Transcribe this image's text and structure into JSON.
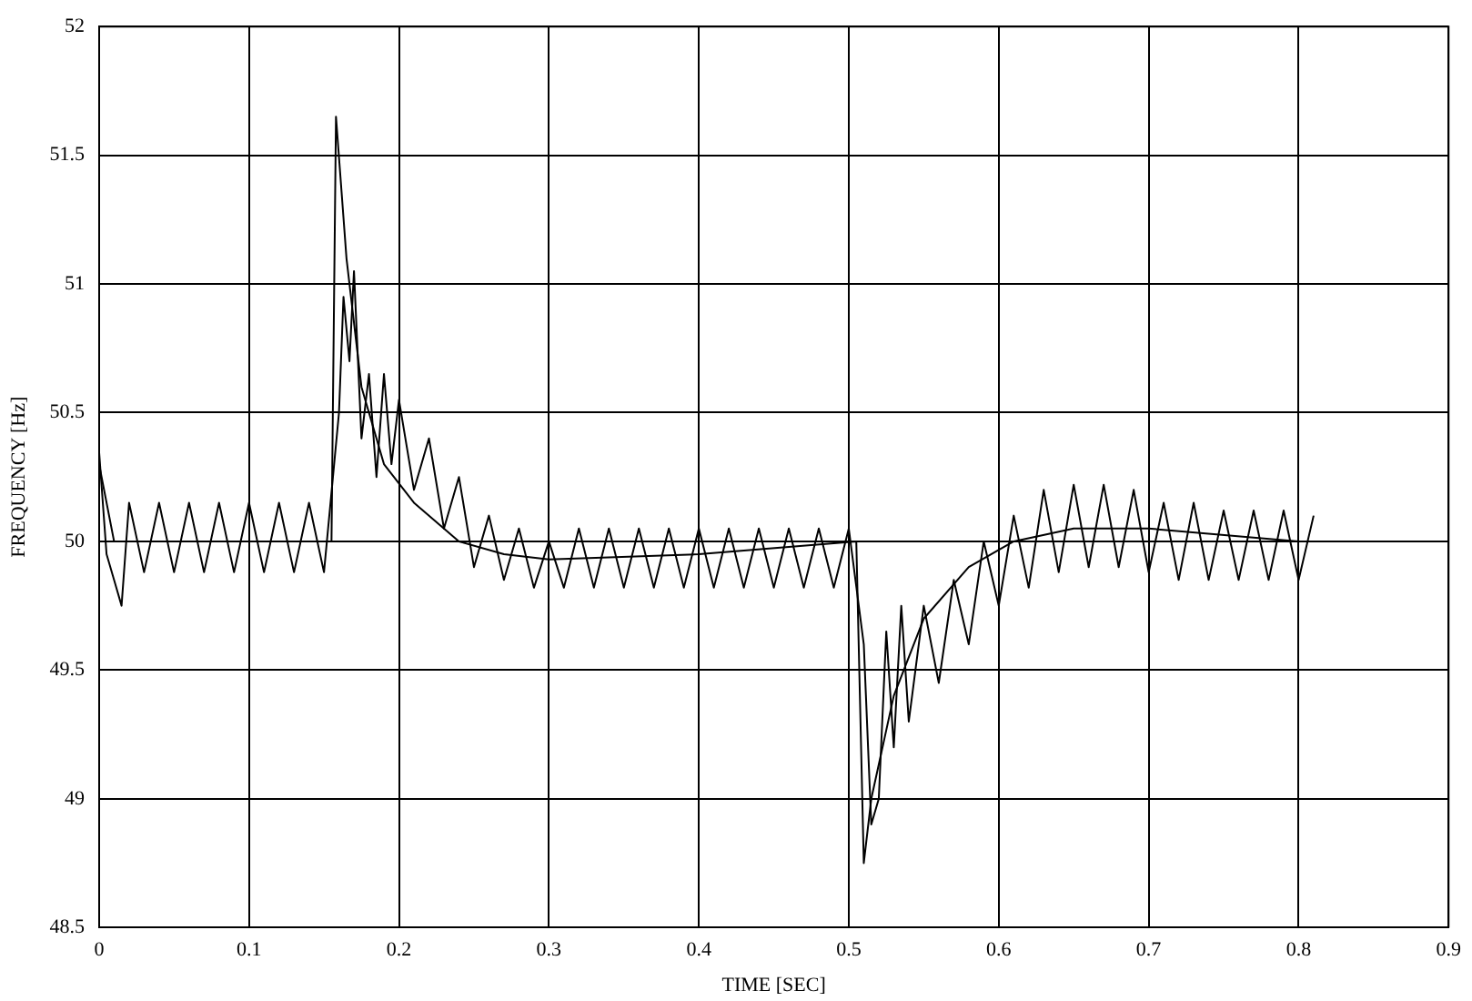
{
  "chart_data": {
    "type": "line",
    "xlabel": "TIME [SEC]",
    "ylabel": "FREQUENCY [Hz]",
    "xlim": [
      0,
      0.9
    ],
    "xticks": [
      0,
      0.1,
      0.2,
      0.3,
      0.4,
      0.5,
      0.6,
      0.7,
      0.8,
      0.9
    ],
    "ylim": [
      48.5,
      52
    ],
    "yticks": [
      48.5,
      49,
      49.5,
      50,
      50.5,
      51,
      51.5,
      52
    ],
    "grid": true,
    "legend": false,
    "marker": "none",
    "line_style": "solid",
    "series": [
      {
        "color": "#000000",
        "x": [
          0,
          0.005,
          0.01,
          0.015,
          0.02,
          0.03,
          0.04,
          0.05,
          0.06,
          0.07,
          0.08,
          0.09,
          0.1,
          0.11,
          0.12,
          0.13,
          0.14,
          0.15,
          0.16,
          0.163,
          0.167,
          0.17,
          0.175,
          0.18,
          0.185,
          0.19,
          0.195,
          0.2,
          0.21,
          0.22,
          0.23,
          0.24,
          0.25,
          0.26,
          0.27,
          0.28,
          0.29,
          0.3,
          0.31,
          0.32,
          0.33,
          0.34,
          0.35,
          0.36,
          0.37,
          0.38,
          0.39,
          0.4,
          0.41,
          0.42,
          0.43,
          0.44,
          0.45,
          0.46,
          0.47,
          0.48,
          0.49,
          0.5,
          0.51,
          0.515,
          0.52,
          0.525,
          0.53,
          0.535,
          0.54,
          0.55,
          0.56,
          0.57,
          0.58,
          0.59,
          0.6,
          0.61,
          0.62,
          0.63,
          0.64,
          0.65,
          0.66,
          0.67,
          0.68,
          0.69,
          0.7,
          0.71,
          0.72,
          0.73,
          0.74,
          0.75,
          0.76,
          0.77,
          0.78,
          0.79,
          0.8,
          0.81
        ],
        "values": [
          50.35,
          49.95,
          49.85,
          49.75,
          50.15,
          49.88,
          50.15,
          49.88,
          50.15,
          49.88,
          50.15,
          49.88,
          50.15,
          49.88,
          50.15,
          49.88,
          50.15,
          49.88,
          50.5,
          50.95,
          50.7,
          51.05,
          50.4,
          50.65,
          50.25,
          50.65,
          50.3,
          50.55,
          50.2,
          50.4,
          50.05,
          50.25,
          49.9,
          50.1,
          49.85,
          50.05,
          49.82,
          50,
          49.82,
          50.05,
          49.82,
          50.05,
          49.82,
          50.05,
          49.82,
          50.05,
          49.82,
          50.05,
          49.82,
          50.05,
          49.82,
          50.05,
          49.82,
          50.05,
          49.82,
          50.05,
          49.82,
          50.05,
          49.6,
          48.9,
          49,
          49.65,
          49.2,
          49.75,
          49.3,
          49.75,
          49.45,
          49.85,
          49.6,
          50,
          49.75,
          50.1,
          49.82,
          50.2,
          49.88,
          50.22,
          49.9,
          50.22,
          49.9,
          50.2,
          49.88,
          50.15,
          49.85,
          50.15,
          49.85,
          50.12,
          49.85,
          50.12,
          49.85,
          50.12,
          49.85,
          50.1
        ]
      },
      {
        "color": "#000000",
        "x": [
          0,
          0.01,
          0.02,
          0.155,
          0.158,
          0.165,
          0.175,
          0.19,
          0.21,
          0.24,
          0.27,
          0.3,
          0.4,
          0.505,
          0.51,
          0.515,
          0.53,
          0.55,
          0.58,
          0.61,
          0.65,
          0.7,
          0.8,
          0.81
        ],
        "values": [
          50.3,
          50,
          50,
          50,
          51.65,
          51.1,
          50.6,
          50.3,
          50.15,
          50,
          49.95,
          49.93,
          49.95,
          50,
          48.75,
          49,
          49.4,
          49.7,
          49.9,
          50,
          50.05,
          50.05,
          50,
          50
        ]
      }
    ]
  }
}
